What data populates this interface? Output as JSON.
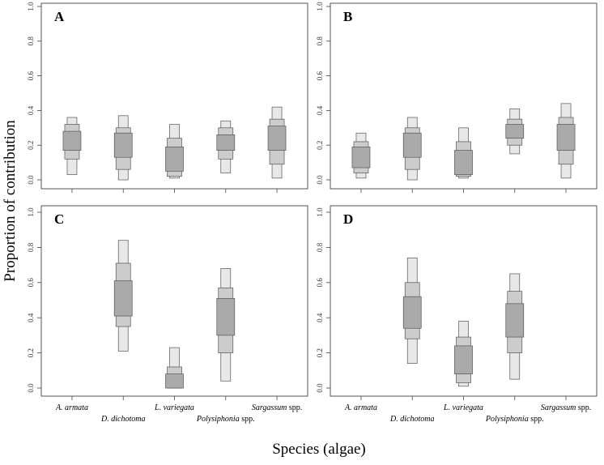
{
  "chart_data": {
    "type": "box",
    "description_style": "stacked credible-interval boxes (95%, 75%, 50%) per species",
    "ylabel": "Proportion of contribution",
    "xlabel": "Species (algae)",
    "ylim": [
      0,
      1
    ],
    "yticks": [
      "0.0",
      "0.2",
      "0.4",
      "0.6",
      "0.8",
      "1.0"
    ],
    "categories": [
      {
        "name": "A. armata",
        "suffix": ""
      },
      {
        "name": "D. dichotoma",
        "suffix": ""
      },
      {
        "name": "L. variegata",
        "suffix": ""
      },
      {
        "name": "Polysiphonia",
        "suffix": " spp."
      },
      {
        "name": "Sargassum",
        "suffix": " spp."
      }
    ],
    "colors": {
      "ci95": "#e8e8e8",
      "ci75": "#cccccc",
      "ci50": "#aaaaaa",
      "stroke": "#555555"
    },
    "panels": [
      {
        "label": "A",
        "boxes": [
          {
            "ci95": [
              0.03,
              0.36
            ],
            "ci75": [
              0.12,
              0.32
            ],
            "ci50": [
              0.17,
              0.28
            ]
          },
          {
            "ci95": [
              0.0,
              0.37
            ],
            "ci75": [
              0.06,
              0.3
            ],
            "ci50": [
              0.13,
              0.27
            ]
          },
          {
            "ci95": [
              0.01,
              0.32
            ],
            "ci75": [
              0.02,
              0.24
            ],
            "ci50": [
              0.05,
              0.19
            ]
          },
          {
            "ci95": [
              0.04,
              0.34
            ],
            "ci75": [
              0.12,
              0.3
            ],
            "ci50": [
              0.17,
              0.26
            ]
          },
          {
            "ci95": [
              0.01,
              0.42
            ],
            "ci75": [
              0.09,
              0.35
            ],
            "ci50": [
              0.17,
              0.31
            ]
          }
        ]
      },
      {
        "label": "B",
        "boxes": [
          {
            "ci95": [
              0.01,
              0.27
            ],
            "ci75": [
              0.04,
              0.22
            ],
            "ci50": [
              0.07,
              0.19
            ]
          },
          {
            "ci95": [
              0.0,
              0.36
            ],
            "ci75": [
              0.06,
              0.3
            ],
            "ci50": [
              0.13,
              0.27
            ]
          },
          {
            "ci95": [
              0.01,
              0.3
            ],
            "ci75": [
              0.02,
              0.22
            ],
            "ci50": [
              0.03,
              0.17
            ]
          },
          {
            "ci95": [
              0.15,
              0.41
            ],
            "ci75": [
              0.2,
              0.35
            ],
            "ci50": [
              0.24,
              0.32
            ]
          },
          {
            "ci95": [
              0.01,
              0.44
            ],
            "ci75": [
              0.09,
              0.36
            ],
            "ci50": [
              0.17,
              0.32
            ]
          }
        ]
      },
      {
        "label": "C",
        "boxes": null
      },
      {
        "label": "D",
        "boxes": null
      }
    ],
    "panels_cd_boxes": {
      "C": [
        {
          "ci95": [
            0.21,
            0.84
          ],
          "ci75": [
            0.35,
            0.71
          ],
          "ci50": [
            0.41,
            0.61
          ]
        },
        {
          "ci95": [
            0.0,
            0.23
          ],
          "ci75": [
            0.0,
            0.12
          ],
          "ci50": [
            0.0,
            0.08
          ]
        },
        {
          "ci95": [
            0.04,
            0.68
          ],
          "ci75": [
            0.2,
            0.57
          ],
          "ci50": [
            0.3,
            0.51
          ]
        }
      ],
      "D": [
        {
          "ci95": [
            0.14,
            0.74
          ],
          "ci75": [
            0.28,
            0.6
          ],
          "ci50": [
            0.34,
            0.52
          ]
        },
        {
          "ci95": [
            0.01,
            0.38
          ],
          "ci75": [
            0.03,
            0.29
          ],
          "ci50": [
            0.08,
            0.24
          ]
        },
        {
          "ci95": [
            0.05,
            0.65
          ],
          "ci75": [
            0.2,
            0.55
          ],
          "ci50": [
            0.29,
            0.48
          ]
        }
      ],
      "category_indices": [
        1,
        2,
        3
      ]
    }
  }
}
